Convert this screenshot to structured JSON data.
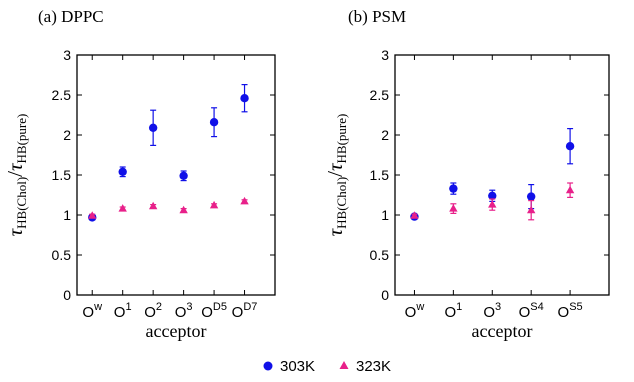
{
  "legend": {
    "placement": "bottom-center",
    "items": [
      {
        "label": "303K",
        "color": "#1010e8",
        "marker": "circle"
      },
      {
        "label": "323K",
        "color": "#e8208a",
        "marker": "triangle"
      }
    ]
  },
  "ylabel": {
    "symbol": "τ",
    "sub_top": "HB(Chol)",
    "slash": "/",
    "sub_bottom": "HB(pure)"
  },
  "chart_data": [
    {
      "type": "scatter",
      "title": "(a) DPPC",
      "xlabel": "acceptor",
      "ylabel": "τHB(Chol)/τHB(pure)",
      "ylim": [
        0,
        3
      ],
      "yticks": [
        "0",
        "0.5",
        "1",
        "1.5",
        "2",
        "2.5",
        "3"
      ],
      "categories": [
        {
          "base": "O",
          "sup": "w"
        },
        {
          "base": "O",
          "sup": "1"
        },
        {
          "base": "O",
          "sup": "2"
        },
        {
          "base": "O",
          "sup": "3"
        },
        {
          "base": "O",
          "sup": "D5"
        },
        {
          "base": "O",
          "sup": "D7"
        }
      ],
      "series": [
        {
          "name": "303K",
          "values": [
            0.97,
            1.54,
            2.09,
            1.49,
            2.16,
            2.46
          ],
          "errors": [
            0.03,
            0.06,
            0.22,
            0.06,
            0.18,
            0.17
          ]
        },
        {
          "name": "323K",
          "values": [
            0.99,
            1.08,
            1.11,
            1.06,
            1.12,
            1.17
          ],
          "errors": [
            0.02,
            0.02,
            0.02,
            0.02,
            0.02,
            0.02
          ]
        }
      ]
    },
    {
      "type": "scatter",
      "title": "(b) PSM",
      "xlabel": "acceptor",
      "ylabel": "τHB(Chol)/τHB(pure)",
      "ylim": [
        0,
        3
      ],
      "yticks": [
        "0",
        "0.5",
        "1",
        "1.5",
        "2",
        "2.5",
        "3"
      ],
      "categories": [
        {
          "base": "O",
          "sup": "w"
        },
        {
          "base": "O",
          "sup": "1"
        },
        {
          "base": "O",
          "sup": "3"
        },
        {
          "base": "O",
          "sup": "S4"
        },
        {
          "base": "O",
          "sup": "S5"
        }
      ],
      "series": [
        {
          "name": "303K",
          "values": [
            0.98,
            1.33,
            1.24,
            1.23,
            1.86
          ],
          "errors": [
            0.03,
            0.07,
            0.07,
            0.15,
            0.22
          ]
        },
        {
          "name": "323K",
          "values": [
            0.99,
            1.08,
            1.13,
            1.06,
            1.31
          ],
          "errors": [
            0.02,
            0.06,
            0.07,
            0.12,
            0.09
          ]
        }
      ]
    }
  ]
}
